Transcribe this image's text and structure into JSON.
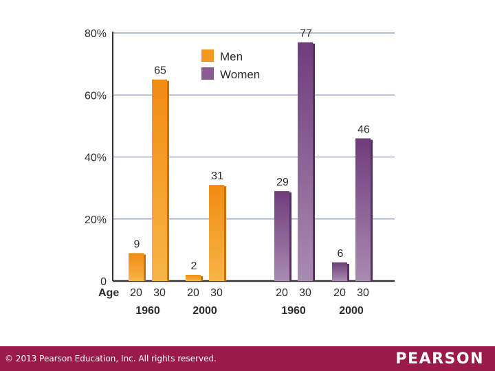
{
  "chart_data": {
    "type": "bar",
    "ylim": [
      0,
      80
    ],
    "y_ticks": [
      {
        "value": 0,
        "label": "0"
      },
      {
        "value": 20,
        "label": "20%"
      },
      {
        "value": 40,
        "label": "40%"
      },
      {
        "value": 60,
        "label": "60%"
      },
      {
        "value": 80,
        "label": "80%"
      }
    ],
    "grid": true,
    "x_axis_title": "Age",
    "legend": {
      "placement": "top-left",
      "entries": [
        {
          "name": "Men",
          "color": "#f39a1e"
        },
        {
          "name": "Women",
          "color": "#8a5a93"
        }
      ]
    },
    "groups": [
      {
        "series": "Men",
        "year": "1960",
        "bars": [
          {
            "age": "20",
            "value": 9
          },
          {
            "age": "30",
            "value": 65
          }
        ]
      },
      {
        "series": "Men",
        "year": "2000",
        "bars": [
          {
            "age": "20",
            "value": 2
          },
          {
            "age": "30",
            "value": 31
          }
        ]
      },
      {
        "series": "Women",
        "year": "1960",
        "bars": [
          {
            "age": "20",
            "value": 29
          },
          {
            "age": "30",
            "value": 77
          }
        ]
      },
      {
        "series": "Women",
        "year": "2000",
        "bars": [
          {
            "age": "20",
            "value": 6
          },
          {
            "age": "30",
            "value": 46
          }
        ]
      }
    ]
  },
  "footer": {
    "copyright": "© 2013  Pearson Education, Inc. All rights reserved.",
    "brand": "PEARSON"
  }
}
